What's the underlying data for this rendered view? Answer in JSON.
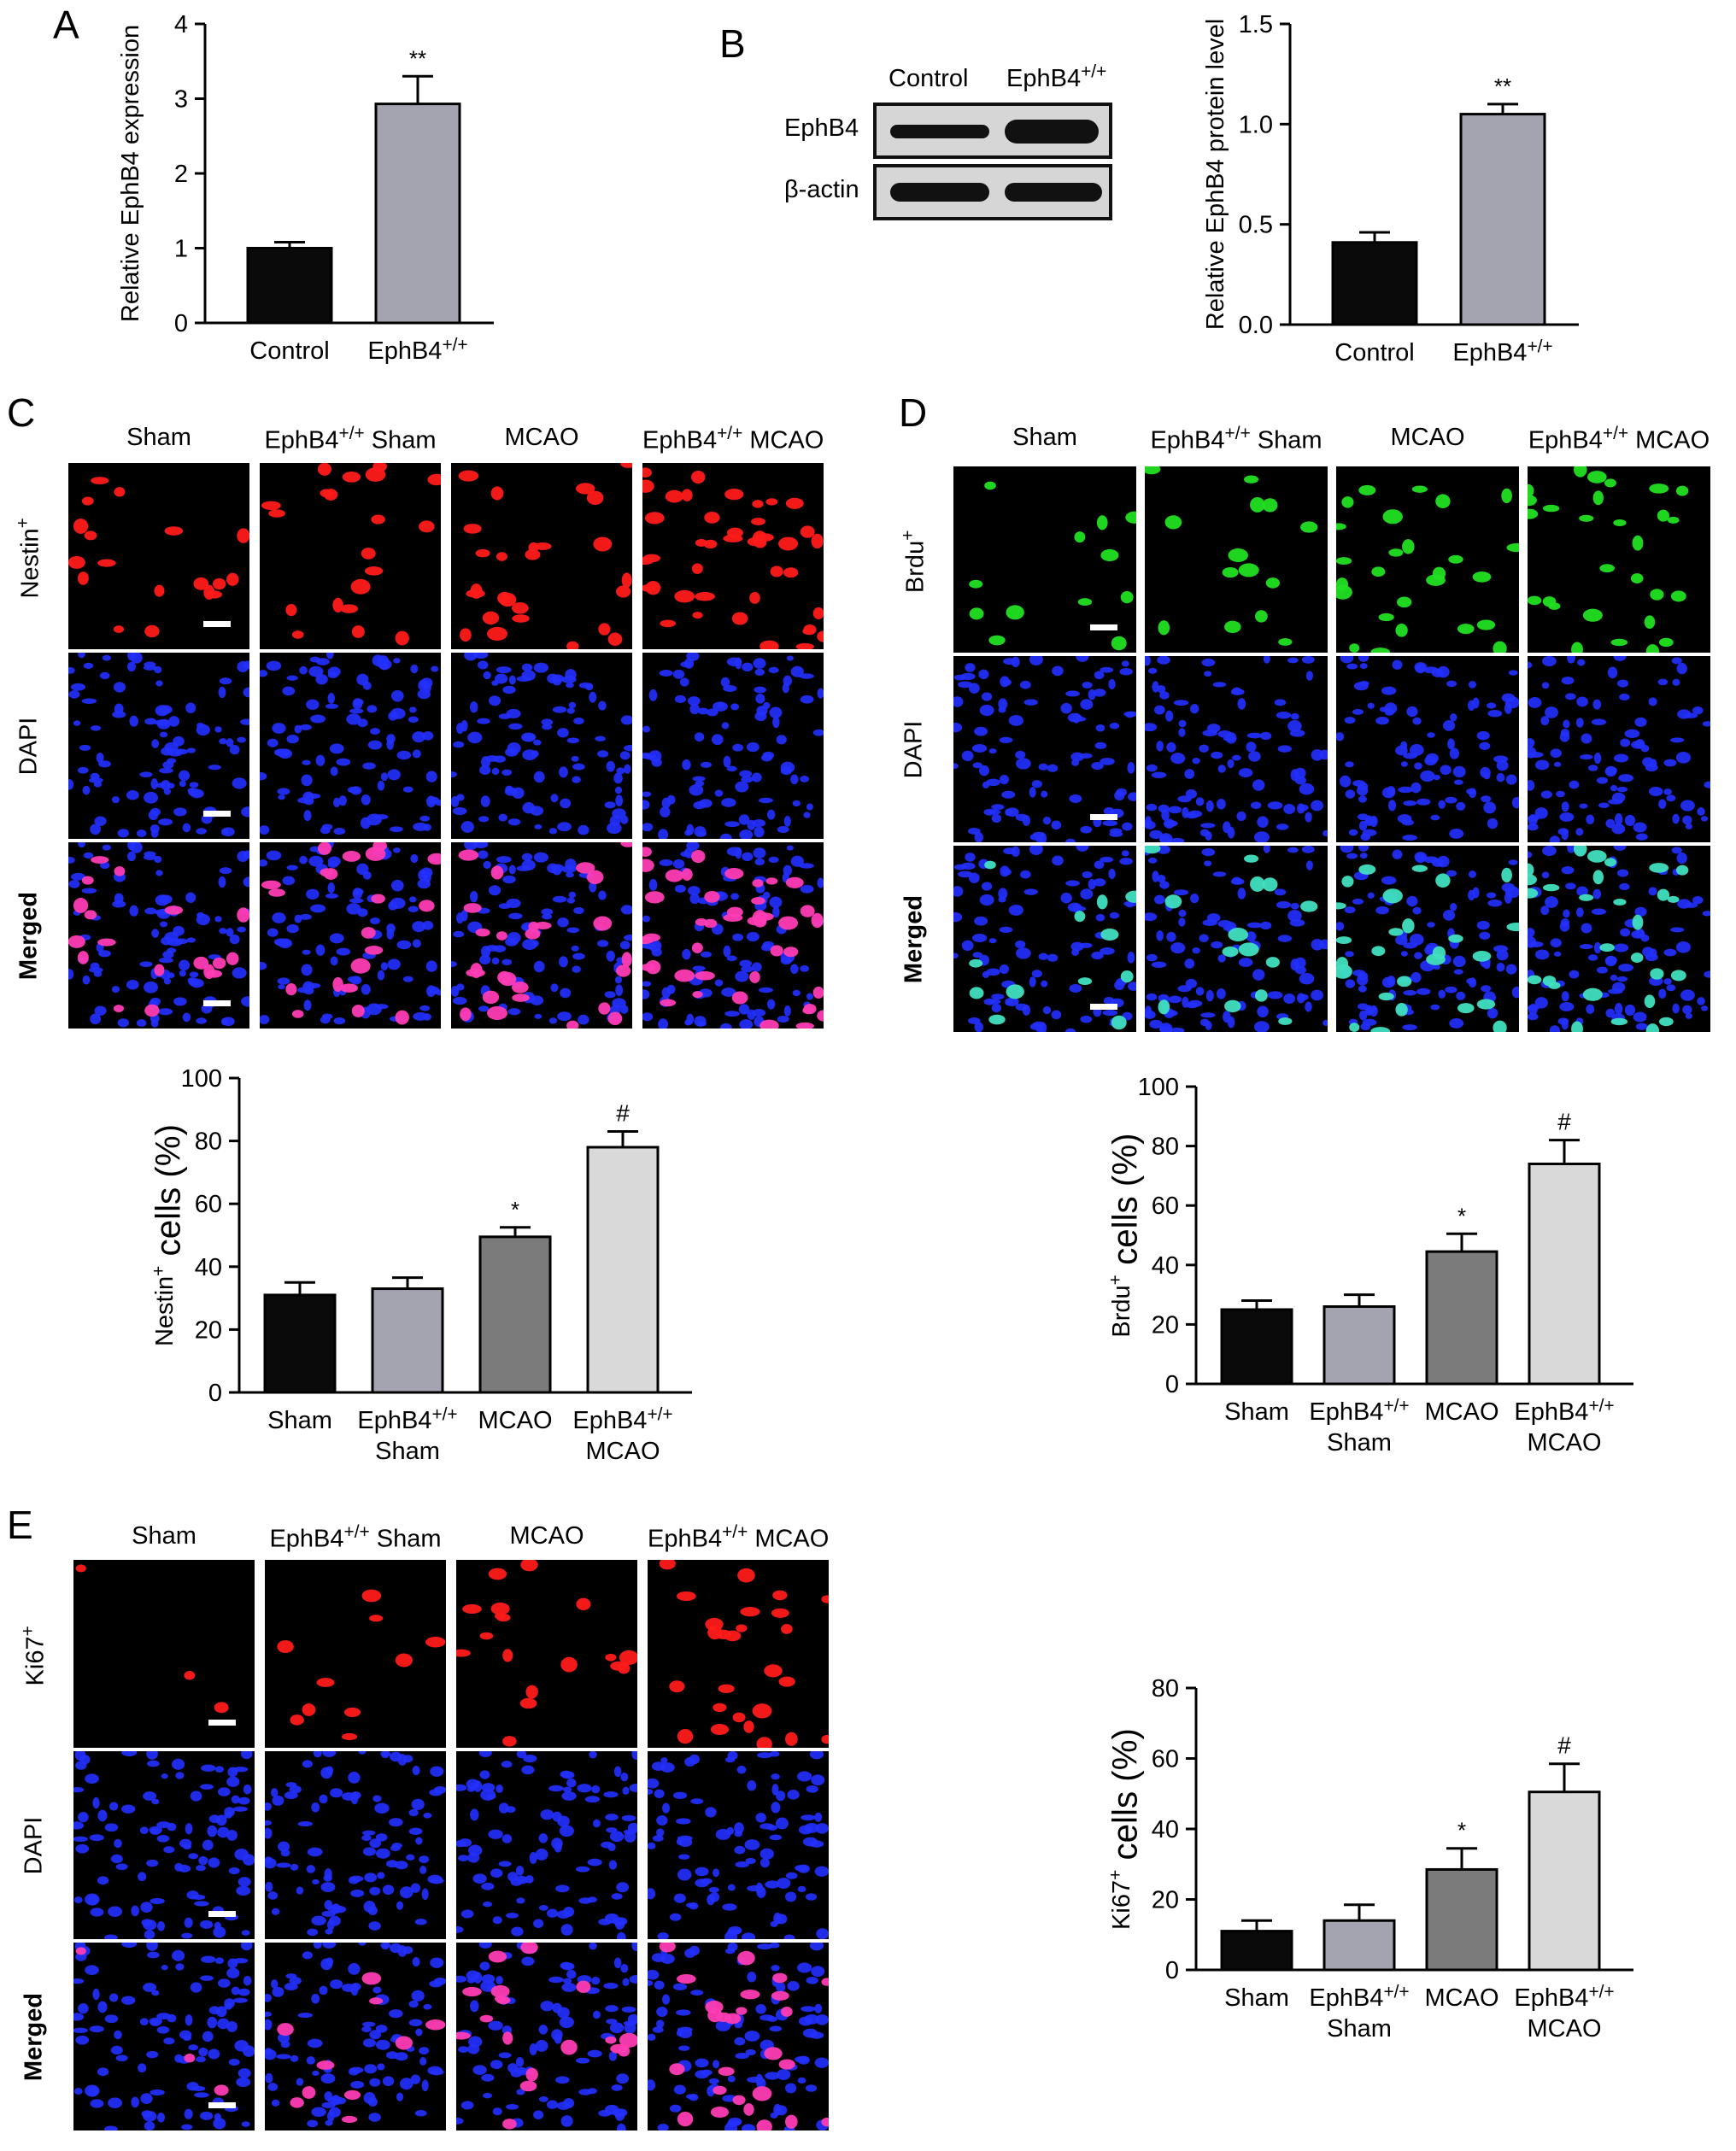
{
  "panel_letters": {
    "a": "A",
    "b": "B",
    "c": "C",
    "d": "D",
    "e": "E"
  },
  "colors": {
    "black": "#0a0a0a",
    "dark_gray": "#7b7b7b",
    "mid_gray": "#a4a4b0",
    "light_gray": "#d9d9d9",
    "nestin_red": "#ff1a1a",
    "brdu_green": "#22e022",
    "dapi_blue": "#2230ff"
  },
  "blot": {
    "headers": [
      "Control",
      "EphB4+/+"
    ],
    "rows": [
      "EphB4",
      "β-actin"
    ]
  },
  "image_panels": {
    "C": {
      "columns": [
        "Sham",
        "EphB4+/+ Sham",
        "MCAO",
        "EphB4+/+ MCAO"
      ],
      "rows": [
        "Nestin+",
        "DAPI",
        "Merged"
      ],
      "row_keys": [
        "marker",
        "dapi",
        "merged"
      ],
      "marker_color": "red"
    },
    "D": {
      "columns": [
        "Sham",
        "EphB4+/+ Sham",
        "MCAO",
        "EphB4+/+ MCAO"
      ],
      "rows": [
        "Brdu+",
        "DAPI",
        "Merged"
      ],
      "row_keys": [
        "marker",
        "dapi",
        "merged"
      ],
      "marker_color": "green"
    },
    "E": {
      "columns": [
        "Sham",
        "EphB4+/+ Sham",
        "MCAO",
        "EphB4+/+ MCAO"
      ],
      "rows": [
        "Ki67+",
        "DAPI",
        "Merged"
      ],
      "row_keys": [
        "marker",
        "dapi",
        "merged"
      ],
      "marker_color": "red"
    }
  },
  "chart_data": [
    {
      "id": "A",
      "type": "bar",
      "categories": [
        "Control",
        "EphB4+/+"
      ],
      "values": [
        1.0,
        2.93
      ],
      "errors": [
        0.08,
        0.37
      ],
      "annotations": [
        "",
        "**"
      ],
      "colors": [
        "#0a0a0a",
        "#a4a4b0"
      ],
      "ylabel": "Relative EphB4 expression",
      "ylim": [
        0,
        4
      ],
      "yticks": [
        "0",
        "1",
        "2",
        "3",
        "4"
      ],
      "ytick_values": [
        0,
        1,
        2,
        3,
        4
      ],
      "grid": false
    },
    {
      "id": "B",
      "type": "bar",
      "categories": [
        "Control",
        "EphB4+/+"
      ],
      "values": [
        0.41,
        1.05
      ],
      "errors": [
        0.05,
        0.05
      ],
      "annotations": [
        "",
        "**"
      ],
      "colors": [
        "#0a0a0a",
        "#a4a4b0"
      ],
      "ylabel": "Relative EphB4 protein level",
      "ylim": [
        0,
        1.5
      ],
      "yticks": [
        "0.0",
        "0.5",
        "1.0",
        "1.5"
      ],
      "ytick_values": [
        0,
        0.5,
        1.0,
        1.5
      ],
      "grid": false
    },
    {
      "id": "C",
      "type": "bar",
      "categories": [
        "Sham",
        "EphB4+/+\nSham",
        "MCAO",
        "EphB4+/+\nMCAO"
      ],
      "values": [
        31,
        33,
        49.5,
        78
      ],
      "errors": [
        4,
        3.5,
        3,
        5
      ],
      "annotations": [
        "",
        "",
        "*",
        "#"
      ],
      "colors": [
        "#0a0a0a",
        "#a4a4b0",
        "#7b7b7b",
        "#d9d9d9"
      ],
      "ylabel": "Nestin+ cells (%)",
      "ylim": [
        0,
        100
      ],
      "yticks": [
        "0",
        "20",
        "40",
        "60",
        "80",
        "100"
      ],
      "ytick_values": [
        0,
        20,
        40,
        60,
        80,
        100
      ],
      "grid": false
    },
    {
      "id": "D",
      "type": "bar",
      "categories": [
        "Sham",
        "EphB4+/+\nSham",
        "MCAO",
        "EphB4+/+\nMCAO"
      ],
      "values": [
        25,
        26,
        44.5,
        74
      ],
      "errors": [
        3,
        4,
        6,
        8
      ],
      "annotations": [
        "",
        "",
        "*",
        "#"
      ],
      "colors": [
        "#0a0a0a",
        "#a4a4b0",
        "#7b7b7b",
        "#d9d9d9"
      ],
      "ylabel": "Brdu+ cells (%)",
      "ylim": [
        0,
        100
      ],
      "yticks": [
        "0",
        "20",
        "40",
        "60",
        "80",
        "100"
      ],
      "ytick_values": [
        0,
        20,
        40,
        60,
        80,
        100
      ],
      "grid": false
    },
    {
      "id": "E",
      "type": "bar",
      "categories": [
        "Sham",
        "EphB4+/+\nSham",
        "MCAO",
        "EphB4+/+\nMCAO"
      ],
      "values": [
        11,
        14,
        28.5,
        50.5
      ],
      "errors": [
        3,
        4.5,
        6,
        8
      ],
      "annotations": [
        "",
        "",
        "*",
        "#"
      ],
      "colors": [
        "#0a0a0a",
        "#a4a4b0",
        "#7b7b7b",
        "#d9d9d9"
      ],
      "ylabel": "Ki67+ cells (%)",
      "ylim": [
        0,
        80
      ],
      "yticks": [
        "0",
        "20",
        "40",
        "60",
        "80"
      ],
      "ytick_values": [
        0,
        20,
        40,
        60,
        80
      ],
      "grid": false
    }
  ]
}
